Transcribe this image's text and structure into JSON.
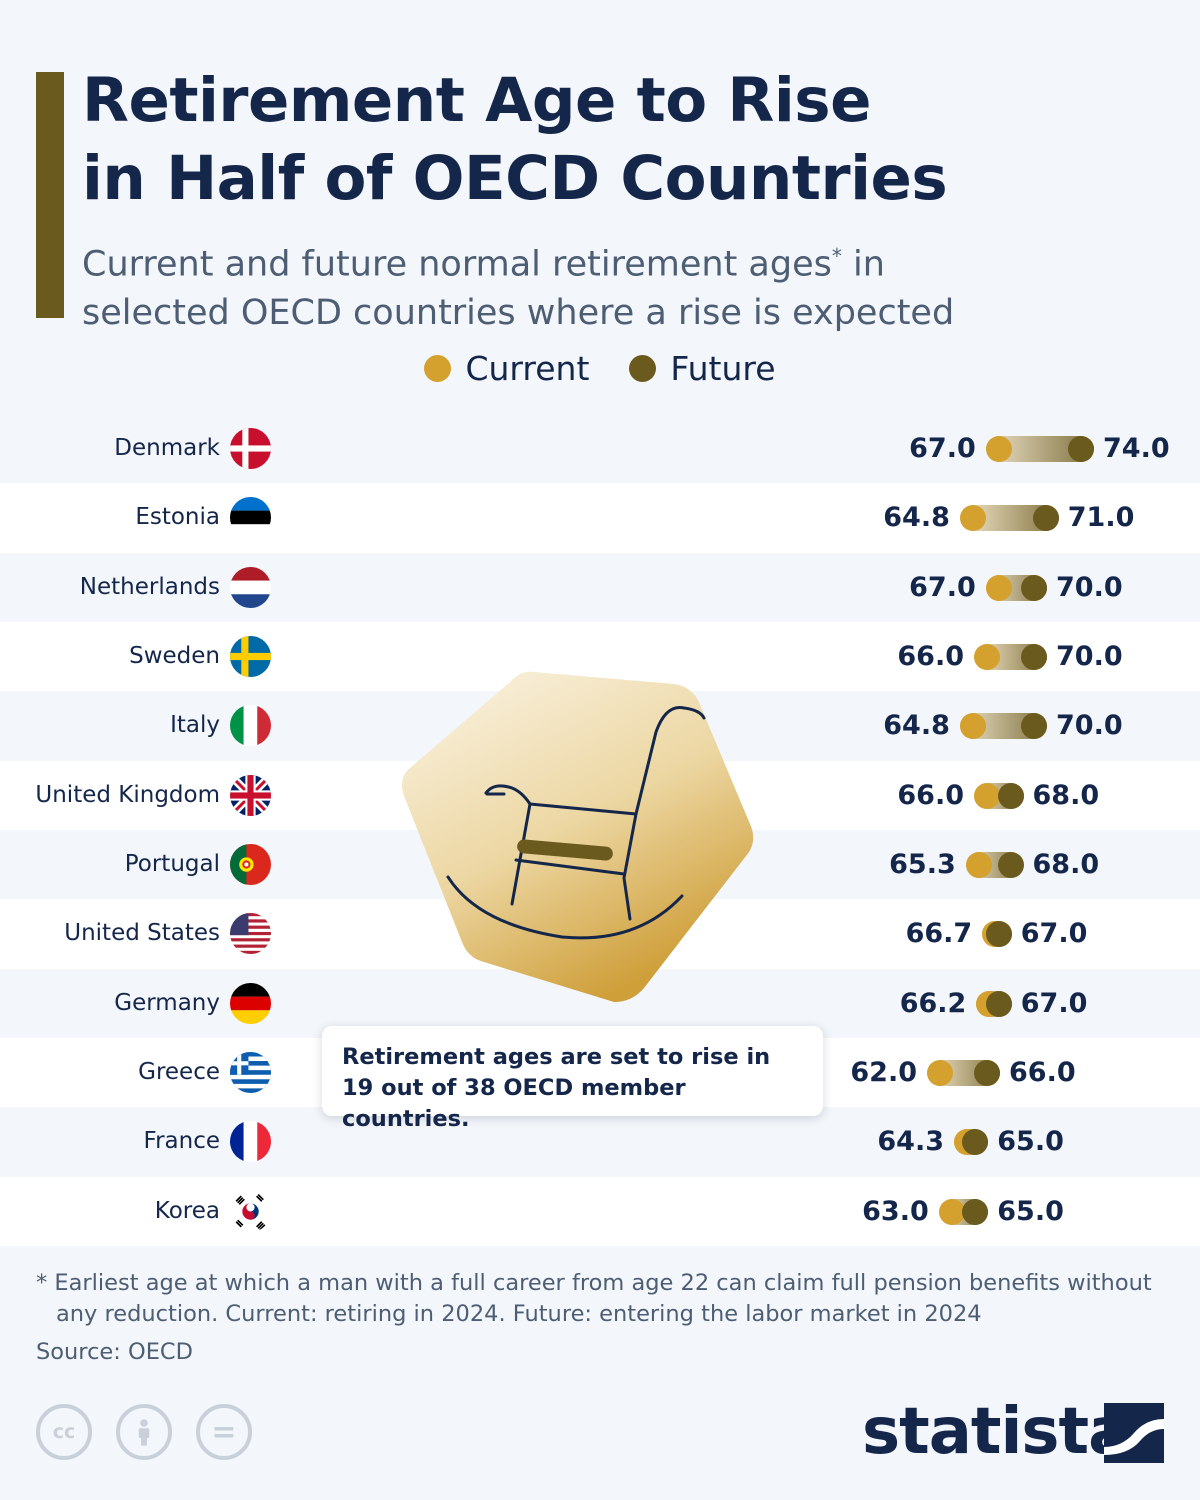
{
  "header": {
    "title_line1": "Retirement Age to Rise",
    "title_line2": "in Half of OECD Countries",
    "subtitle_part1": "Current and future normal retirement ages",
    "subtitle_asterisk": "*",
    "subtitle_part2": " in",
    "subtitle_line2": "selected OECD countries where a rise is expected"
  },
  "legend": {
    "current_label": "Current",
    "future_label": "Future"
  },
  "colors": {
    "current": "#d4a02e",
    "future": "#6b5a1e",
    "title_bar": "#6b5a1e"
  },
  "chart_data": {
    "type": "dumbbell",
    "title": "Retirement Age to Rise in Half of OECD Countries",
    "series": [
      {
        "name": "Current",
        "values": [
          67.0,
          64.8,
          67.0,
          66.0,
          64.8,
          66.0,
          65.3,
          66.7,
          66.2,
          62.0,
          64.3,
          63.0
        ]
      },
      {
        "name": "Future",
        "values": [
          74.0,
          71.0,
          70.0,
          70.0,
          70.0,
          68.0,
          68.0,
          67.0,
          67.0,
          66.0,
          65.0,
          65.0
        ]
      }
    ],
    "categories": [
      "Denmark",
      "Estonia",
      "Netherlands",
      "Sweden",
      "Italy",
      "United Kingdom",
      "Portugal",
      "United States",
      "Germany",
      "Greece",
      "France",
      "Korea"
    ],
    "current_labels": [
      "67.0",
      "64.8",
      "67.0",
      "66.0",
      "64.8",
      "66.0",
      "65.3",
      "66.7",
      "66.2",
      "62.0",
      "64.3",
      "63.0"
    ],
    "future_labels": [
      "74.0",
      "71.0",
      "70.0",
      "70.0",
      "70.0",
      "68.0",
      "68.0",
      "67.0",
      "67.0",
      "66.0",
      "65.0",
      "65.0"
    ],
    "flags": [
      "denmark-flag",
      "estonia-flag",
      "netherlands-flag",
      "sweden-flag",
      "italy-flag",
      "uk-flag",
      "portugal-flag",
      "usa-flag",
      "germany-flag",
      "greece-flag",
      "france-flag",
      "korea-flag"
    ],
    "xlabel": "",
    "ylabel": ""
  },
  "callout": {
    "line1": "Retirement ages are set to rise in",
    "line2": "19 out of 38 OECD member countries."
  },
  "footer": {
    "footnote_line1": "* Earliest age at which a man with a full career from age 22 can claim full pension benefits without",
    "footnote_line2": "any reduction. Current: retiring in 2024. Future: entering the labor market in 2024",
    "source": "Source: OECD",
    "brand": "statista",
    "cc_label": "cc",
    "equals_label": "="
  }
}
